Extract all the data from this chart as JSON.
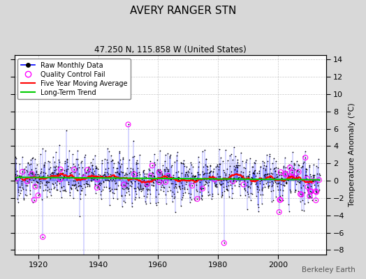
{
  "title": "AVERY RANGER STN",
  "subtitle": "47.250 N, 115.858 W (United States)",
  "ylabel": "Temperature Anomaly (°C)",
  "attribution": "Berkeley Earth",
  "ylim": [
    -8.5,
    14.5
  ],
  "xlim": [
    1912,
    2016
  ],
  "xticks": [
    1920,
    1940,
    1960,
    1980,
    2000
  ],
  "yticks": [
    -8,
    -6,
    -4,
    -2,
    0,
    2,
    4,
    6,
    8,
    10,
    12,
    14
  ],
  "raw_color": "#0000ff",
  "raw_dot_color": "#000000",
  "qc_color": "#ff00ff",
  "ma_color": "#ff0000",
  "trend_color": "#00cc00",
  "bg_color": "#d8d8d8",
  "plot_bg_color": "#ffffff",
  "seed": 42,
  "start_year": 1912,
  "end_year": 2014,
  "ma_window": 60
}
